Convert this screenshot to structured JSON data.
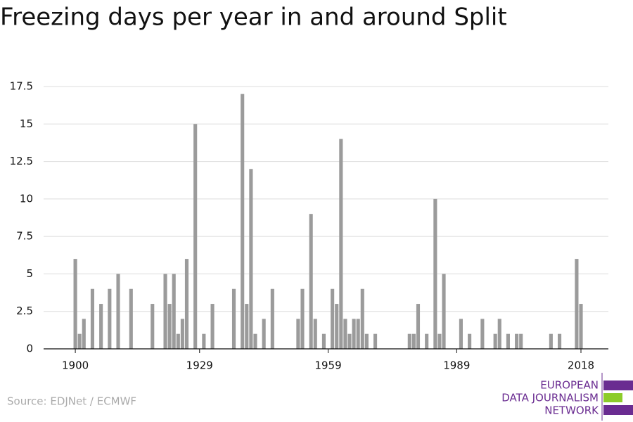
{
  "chart_data": {
    "type": "bar",
    "title": "Freezing days per year in and around Split",
    "source": "Source: EDJNet / ECMWF",
    "logo": [
      "EUROPEAN",
      "DATA JOURNALISM",
      "NETWORK"
    ],
    "color": "#9b9b9b",
    "x": [
      1900,
      1901,
      1902,
      1904,
      1906,
      1908,
      1910,
      1913,
      1918,
      1921,
      1922,
      1923,
      1924,
      1925,
      1926,
      1928,
      1930,
      1932,
      1937,
      1939,
      1940,
      1941,
      1942,
      1944,
      1946,
      1952,
      1953,
      1955,
      1956,
      1958,
      1960,
      1961,
      1962,
      1963,
      1964,
      1965,
      1966,
      1967,
      1968,
      1970,
      1978,
      1979,
      1980,
      1982,
      1984,
      1985,
      1986,
      1990,
      1992,
      1995,
      1998,
      1999,
      2001,
      2003,
      2004,
      2011,
      2013,
      2017,
      2018
    ],
    "values": [
      6,
      1,
      2,
      4,
      3,
      4,
      5,
      4,
      3,
      5,
      3,
      5,
      1,
      2,
      6,
      15,
      1,
      3,
      4,
      17,
      3,
      12,
      1,
      2,
      4,
      2,
      4,
      9,
      2,
      1,
      4,
      3,
      14,
      2,
      1,
      2,
      2,
      4,
      1,
      1,
      1,
      1,
      3,
      1,
      10,
      1,
      5,
      2,
      1,
      2,
      1,
      2,
      1,
      1,
      1,
      1,
      1,
      6,
      3
    ],
    "xlim": [
      1892.6,
      2024.4
    ],
    "xticks": [
      1900,
      1929,
      1959,
      1989,
      2018
    ],
    "ylim": [
      0,
      17.5
    ],
    "yticks": [
      0,
      2.5,
      5,
      7.5,
      10,
      12.5,
      15,
      17.5
    ],
    "grid": true
  }
}
